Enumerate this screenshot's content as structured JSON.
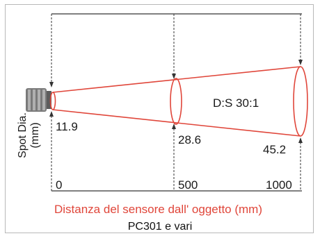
{
  "diagram": {
    "ratio_label": "D:S 30:1",
    "spot_label_line1": "Spot Dia.",
    "spot_label_line2": "(mm)",
    "spot_values": [
      "11.9",
      "28.6",
      "45.2"
    ],
    "distance_ticks": [
      "0",
      "500",
      "1000"
    ],
    "distance_title": "Distanza del sensore dall' oggetto (mm)",
    "caption": "PC301 e vari",
    "colors": {
      "beam": "#e0463a",
      "guide": "#333333",
      "frame": "#b8b8b8"
    }
  }
}
